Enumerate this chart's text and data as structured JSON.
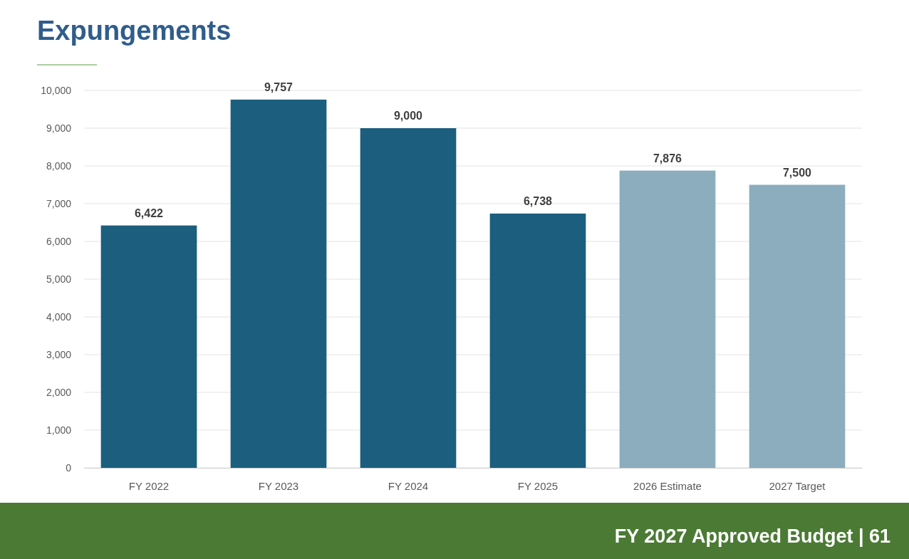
{
  "chart_data": {
    "type": "bar",
    "title": "Expungements",
    "categories": [
      "FY 2022",
      "FY 2023",
      "FY 2024",
      "FY 2025",
      "2026 Estimate",
      "2027 Target"
    ],
    "values": [
      6422,
      9757,
      9000,
      6738,
      7876,
      7500
    ],
    "colors": [
      "#1b5e7e",
      "#1b5e7e",
      "#1b5e7e",
      "#1b5e7e",
      "#8badbe",
      "#8badbe"
    ],
    "ylim": [
      0,
      10000
    ],
    "yticks": [
      {
        "value": 0,
        "label": "0"
      },
      {
        "value": 1000,
        "label": "1,000"
      },
      {
        "value": 2000,
        "label": "2,000"
      },
      {
        "value": 3000,
        "label": "3,000"
      },
      {
        "value": 4000,
        "label": "4,000"
      },
      {
        "value": 5000,
        "label": "5,000"
      },
      {
        "value": 6000,
        "label": "6,000"
      },
      {
        "value": 7000,
        "label": "7,000"
      },
      {
        "value": 8000,
        "label": "8,000"
      },
      {
        "value": 9000,
        "label": "9,000"
      },
      {
        "value": 10000,
        "label": "10,000"
      }
    ],
    "grid": "y",
    "value_labels": [
      "6,422",
      "9,757",
      "9,000",
      "6,738",
      "7,876",
      "7,500"
    ],
    "annotations": [
      "FY 2027 Approved Budget | 61"
    ]
  }
}
